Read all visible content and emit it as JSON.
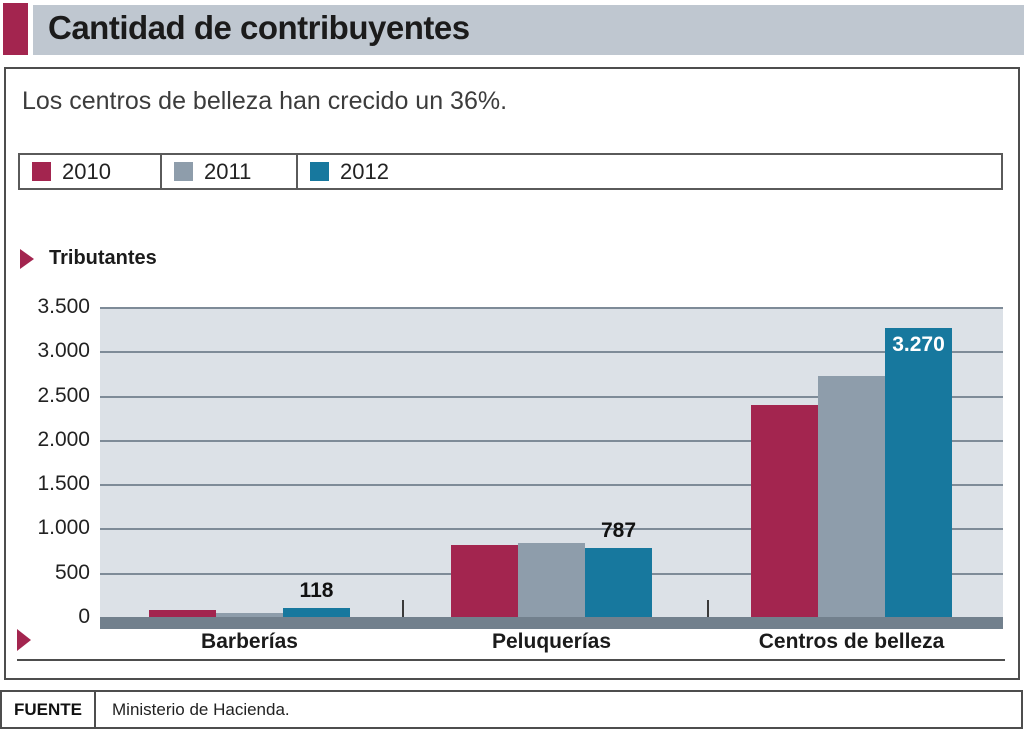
{
  "header": {
    "title": "Cantidad de contribuyentes"
  },
  "subtitle": "Los centros de belleza han crecido un 36%.",
  "axis_title": "Tributantes",
  "colors": {
    "accent_maroon": "#a3254f",
    "series_2010": "#a3254f",
    "series_2011": "#8e9dab",
    "series_2012": "#17789e",
    "header_bar_bg": "#bfc7d0",
    "plot_bg": "#dce1e7",
    "gridline": "#7e8b98",
    "axis_band": "#72808d"
  },
  "chart_data": {
    "type": "bar",
    "title": "Cantidad de contribuyentes",
    "subtitle": "Los centros de belleza han crecido un 36%.",
    "ylabel": "Tributantes",
    "xlabel": "",
    "categories": [
      "Barberías",
      "Peluquerías",
      "Centros de belleza"
    ],
    "series": [
      {
        "name": "2010",
        "color": "#a3254f",
        "values": [
          95,
          830,
          2400
        ]
      },
      {
        "name": "2011",
        "color": "#8e9dab",
        "values": [
          60,
          845,
          2730
        ]
      },
      {
        "name": "2012",
        "color": "#17789e",
        "values": [
          118,
          787,
          3270
        ]
      }
    ],
    "bar_labels": [
      {
        "category": 0,
        "series": 2,
        "text": "118",
        "placement": "above"
      },
      {
        "category": 1,
        "series": 2,
        "text": "787",
        "placement": "above"
      },
      {
        "category": 2,
        "series": 2,
        "text": "3.270",
        "placement": "inside"
      }
    ],
    "ylim": [
      0,
      3500
    ],
    "ytick_labels": [
      "3.500",
      "3.000",
      "2.500",
      "2.000",
      "1.500",
      "1.000",
      "500",
      "0"
    ],
    "ytick_values": [
      3500,
      3000,
      2500,
      2000,
      1500,
      1000,
      500,
      0
    ],
    "grid": true,
    "legend_position": "top"
  },
  "footer": {
    "source_label": "FUENTE",
    "source_value": "Ministerio de Hacienda."
  }
}
